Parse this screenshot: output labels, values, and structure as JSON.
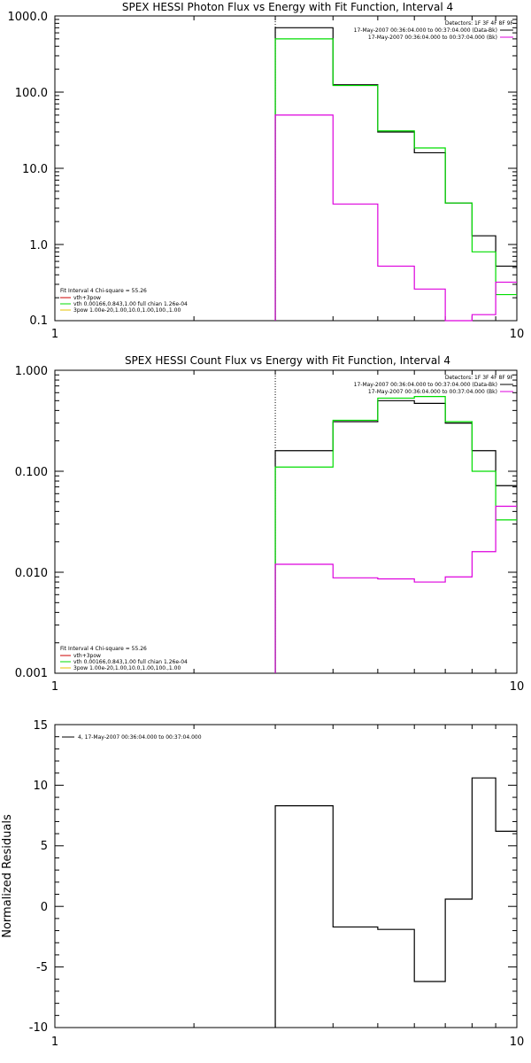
{
  "chart_data": [
    {
      "type": "line",
      "title": "SPEX HESSI Photon Flux vs Energy with Fit Function, Interval 4",
      "xlabel": "",
      "ylabel": "",
      "xscale": "log",
      "yscale": "log",
      "xlim": [
        1,
        10
      ],
      "ylim": [
        0.1,
        1000
      ],
      "yticks": [
        "1000.0",
        "100.0",
        "10.0",
        "1.0",
        "0.1"
      ],
      "xticks": [
        "1",
        "10"
      ],
      "vline_x": 3,
      "legend_tr": [
        "Detectors: 1F 3F 4F 8F 9F",
        "17-May-2007 00:36:04.000 to 00:37:04.000 (Data-Bk)",
        "17-May-2007 00:36:04.000 to 00:37:04.000 (Bk)"
      ],
      "legend_bl": [
        "Fit Interval 4   Chi-square = 55.26",
        "vth+3pow",
        "vth 0.00166,0.843,1.00  full chian 1.26e-04",
        "3pow 1.00e-20,1.00,10.0,1.00,100.,1.00"
      ],
      "bin_edges": [
        3,
        4,
        5,
        6,
        7,
        8,
        9,
        10
      ],
      "series": [
        {
          "name": "Data-Bk",
          "color": "#000000",
          "values": [
            700,
            125,
            30,
            16,
            3.5,
            1.3,
            0.52
          ]
        },
        {
          "name": "vth+3pow",
          "color": "#00dd00",
          "values": [
            500,
            122,
            31,
            18.5,
            3.5,
            0.8,
            0.22
          ]
        },
        {
          "name": "Bk",
          "color": "#dd00dd",
          "values": [
            50,
            3.4,
            0.52,
            0.26,
            0.095,
            0.12,
            0.32
          ]
        }
      ]
    },
    {
      "type": "line",
      "title": "SPEX HESSI Count Flux vs Energy with Fit Function, Interval 4",
      "xlabel": "",
      "ylabel": "",
      "xscale": "log",
      "yscale": "log",
      "xlim": [
        1,
        10
      ],
      "ylim": [
        0.001,
        1
      ],
      "yticks": [
        "1.000",
        "0.100",
        "0.010",
        "0.001"
      ],
      "xticks": [
        "1",
        "10"
      ],
      "vline_x": 3,
      "legend_tr": [
        "Detectors: 1F 3F 4F 8F 9F",
        "17-May-2007 00:36:04.000 to 00:37:04.000 (Data-Bk)",
        "17-May-2007 00:36:04.000 to 00:37:04.000 (Bk)"
      ],
      "legend_bl": [
        "Fit Interval 4   Chi-square = 55.26",
        "vth+3pow",
        "vth 0.00166,0.843,1.00  full chian 1.26e-04",
        "3pow 1.00e-20,1.00,10.0,1.00,100.,1.00"
      ],
      "bin_edges": [
        3,
        4,
        5,
        6,
        7,
        8,
        9,
        10
      ],
      "series": [
        {
          "name": "Data-Bk",
          "color": "#000000",
          "values": [
            0.16,
            0.31,
            0.5,
            0.47,
            0.3,
            0.16,
            0.072
          ]
        },
        {
          "name": "vth+3pow",
          "color": "#00dd00",
          "values": [
            0.11,
            0.32,
            0.53,
            0.55,
            0.31,
            0.1,
            0.033
          ]
        },
        {
          "name": "Bk",
          "color": "#dd00dd",
          "values": [
            0.012,
            0.0088,
            0.0086,
            0.008,
            0.009,
            0.016,
            0.045
          ]
        }
      ]
    },
    {
      "type": "line",
      "title": "",
      "xlabel": "",
      "ylabel": "Normalized Residuals",
      "xscale": "log",
      "yscale": "linear",
      "xlim": [
        1,
        10
      ],
      "ylim": [
        -10,
        15
      ],
      "yticks": [
        "15",
        "10",
        "5",
        "0",
        "-5",
        "-10"
      ],
      "xticks": [
        "1",
        "10"
      ],
      "legend_tl": [
        "4, 17-May-2007 00:36:04.000 to 00:37:04.000"
      ],
      "bin_edges": [
        3,
        4,
        5,
        6,
        7,
        8,
        9,
        10
      ],
      "series": [
        {
          "name": "",
          "color": "#000000",
          "values": [
            8.3,
            -1.7,
            -1.9,
            -6.2,
            0.6,
            10.6,
            6.2
          ]
        }
      ]
    }
  ]
}
